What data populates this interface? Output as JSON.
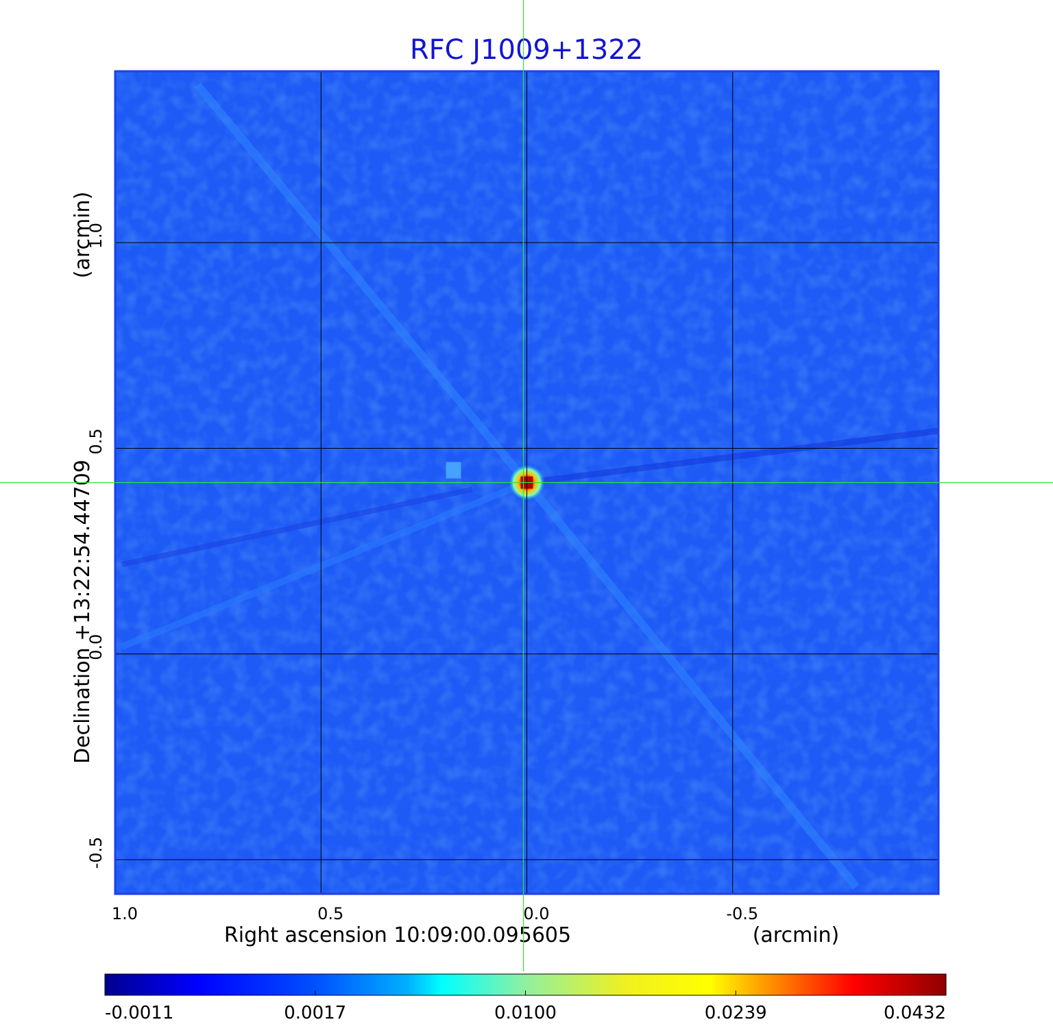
{
  "chart_data": {
    "type": "heatmap",
    "title": "RFC J1009+1322",
    "xlabel": "Right ascension  10:09:00.095605",
    "xunit": "(arcmin)",
    "ylabel": "Declination  +13:22:54.44709",
    "yunit": "(arcmin)",
    "x_range": [
      1.0,
      -1.0
    ],
    "y_range": [
      -0.5833,
      1.4167
    ],
    "x_ticks": [
      1.0,
      0.5,
      0.0,
      -0.5
    ],
    "x_tick_labels": [
      "1.0",
      "0.5",
      "0.0",
      "-0.5"
    ],
    "y_ticks": [
      -0.5,
      0.0,
      0.5,
      1.0
    ],
    "y_tick_labels": [
      "-0.5",
      "0.0",
      "0.5",
      "1.0"
    ],
    "grid": true,
    "crosshair": {
      "x": 0.0,
      "y": 0.4167,
      "color": "#32e632"
    },
    "peak": {
      "x": 0.0,
      "y": 0.4167
    },
    "colormap": "jet",
    "colorbar": {
      "position": "bottom",
      "tick_labels": [
        "-0.0011",
        "0.0017",
        "0.0100",
        "0.0239",
        "0.0432"
      ],
      "min": -0.0011,
      "max": 0.0432
    },
    "colors": {
      "title": "#1414d2",
      "frame": "#1f3fe8",
      "background": "#1e5af5",
      "grid": "#000000"
    }
  }
}
